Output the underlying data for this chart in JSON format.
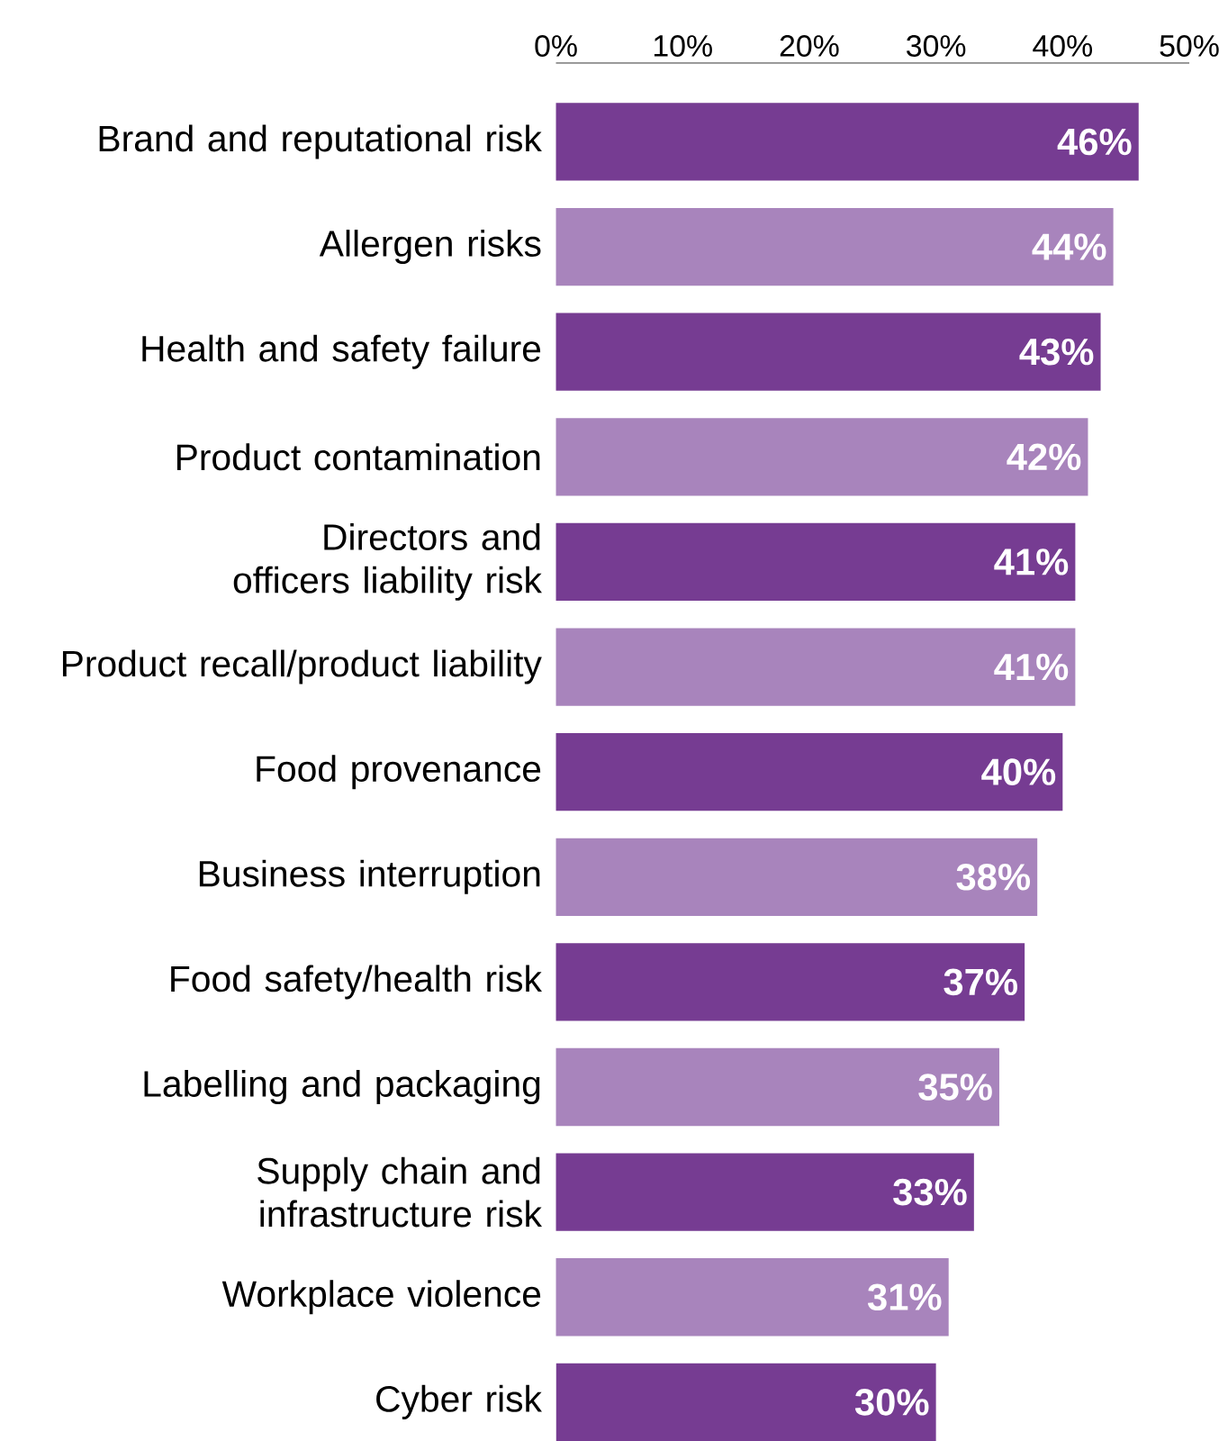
{
  "chart_data": {
    "type": "bar",
    "orientation": "horizontal",
    "categories": [
      "Brand and reputational risk",
      "Allergen risks",
      "Health and safety failure",
      "Product contamination",
      "Directors and officers liability risk",
      "Product recall/product liability",
      "Food provenance",
      "Business interruption",
      "Food safety/health risk",
      "Labelling and packaging",
      "Supply chain and infrastructure risk",
      "Workplace violence",
      "Cyber risk"
    ],
    "values": [
      46,
      44,
      43,
      42,
      41,
      41,
      40,
      38,
      37,
      35,
      33,
      31,
      30
    ],
    "value_labels": [
      "46%",
      "44%",
      "43%",
      "42%",
      "41%",
      "41%",
      "40%",
      "38%",
      "37%",
      "35%",
      "33%",
      "31%",
      "30%"
    ],
    "colors": [
      "#763c92",
      "#a884bc",
      "#763c92",
      "#a884bc",
      "#763c92",
      "#a884bc",
      "#763c92",
      "#a884bc",
      "#763c92",
      "#a884bc",
      "#763c92",
      "#a884bc",
      "#763c92"
    ],
    "xlim": [
      0,
      50
    ],
    "xticks": [
      {
        "value": 0,
        "label": "0%"
      },
      {
        "value": 10,
        "label": "10%"
      },
      {
        "value": 20,
        "label": "20%"
      },
      {
        "value": 30,
        "label": "30%"
      },
      {
        "value": 40,
        "label": "40%"
      },
      {
        "value": 50,
        "label": "50%"
      }
    ],
    "grid": false
  }
}
